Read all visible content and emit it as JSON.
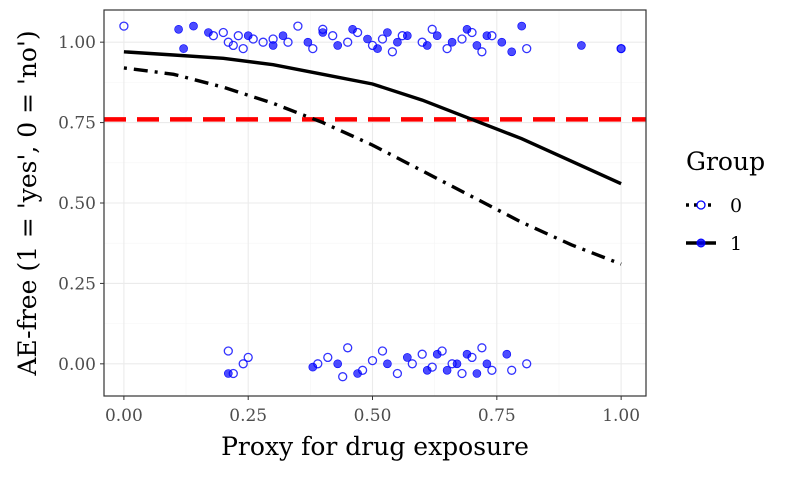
{
  "chart_data": {
    "type": "scatter",
    "title": "",
    "xlabel": "Proxy for drug exposure",
    "ylabel": "AE-free (1 = 'yes', 0 = 'no')",
    "xlim": [
      -0.04,
      1.05
    ],
    "ylim": [
      -0.1,
      1.1
    ],
    "x_ticks": [
      0.0,
      0.25,
      0.5,
      0.75,
      1.0
    ],
    "x_tick_labels": [
      "0.00",
      "0.25",
      "0.50",
      "0.75",
      "1.00"
    ],
    "y_ticks": [
      0.0,
      0.25,
      0.5,
      0.75,
      1.0
    ],
    "y_tick_labels": [
      "0.00",
      "0.25",
      "0.50",
      "0.75",
      "1.00"
    ],
    "grid": true,
    "reference_line": {
      "y": 0.76,
      "style": "dashed",
      "color": "#ff0000"
    },
    "legend": {
      "title": "Group",
      "placement": "right",
      "entries": [
        {
          "label": "0",
          "marker": "open-circle",
          "line": "dotdash"
        },
        {
          "label": "1",
          "marker": "filled-circle",
          "line": "solid"
        }
      ]
    },
    "point_color": "#0000ff",
    "series": [
      {
        "name": "0",
        "line_style": "dotdash",
        "curve": {
          "x": [
            0.0,
            0.1,
            0.2,
            0.3,
            0.4,
            0.5,
            0.6,
            0.7,
            0.8,
            0.9,
            1.0
          ],
          "y": [
            0.92,
            0.9,
            0.86,
            0.81,
            0.75,
            0.68,
            0.6,
            0.52,
            0.44,
            0.37,
            0.31
          ]
        },
        "points": [
          [
            0.0,
            1.05
          ],
          [
            0.18,
            1.02
          ],
          [
            0.2,
            1.03
          ],
          [
            0.21,
            1.0
          ],
          [
            0.22,
            0.99
          ],
          [
            0.23,
            1.02
          ],
          [
            0.24,
            0.98
          ],
          [
            0.26,
            1.01
          ],
          [
            0.28,
            1.0
          ],
          [
            0.3,
            1.01
          ],
          [
            0.33,
            1.0
          ],
          [
            0.35,
            1.05
          ],
          [
            0.38,
            0.98
          ],
          [
            0.4,
            1.04
          ],
          [
            0.42,
            1.02
          ],
          [
            0.45,
            1.0
          ],
          [
            0.47,
            1.03
          ],
          [
            0.5,
            0.99
          ],
          [
            0.52,
            1.01
          ],
          [
            0.54,
            0.97
          ],
          [
            0.56,
            1.02
          ],
          [
            0.6,
            1.0
          ],
          [
            0.62,
            1.04
          ],
          [
            0.65,
            0.98
          ],
          [
            0.68,
            1.01
          ],
          [
            0.7,
            1.03
          ],
          [
            0.72,
            0.97
          ],
          [
            0.74,
            1.02
          ],
          [
            0.81,
            0.98
          ],
          [
            1.0,
            0.98
          ],
          [
            0.21,
            0.04
          ],
          [
            0.22,
            -0.03
          ],
          [
            0.24,
            0.0
          ],
          [
            0.25,
            0.02
          ],
          [
            0.39,
            0.0
          ],
          [
            0.41,
            0.02
          ],
          [
            0.44,
            -0.04
          ],
          [
            0.45,
            0.05
          ],
          [
            0.48,
            -0.02
          ],
          [
            0.5,
            0.01
          ],
          [
            0.52,
            0.04
          ],
          [
            0.55,
            -0.03
          ],
          [
            0.58,
            0.0
          ],
          [
            0.6,
            0.03
          ],
          [
            0.62,
            -0.01
          ],
          [
            0.64,
            0.04
          ],
          [
            0.66,
            0.0
          ],
          [
            0.68,
            -0.03
          ],
          [
            0.7,
            0.02
          ],
          [
            0.72,
            0.05
          ],
          [
            0.74,
            -0.02
          ],
          [
            0.78,
            -0.02
          ],
          [
            0.81,
            0.0
          ]
        ]
      },
      {
        "name": "1",
        "line_style": "solid",
        "curve": {
          "x": [
            0.0,
            0.1,
            0.2,
            0.3,
            0.4,
            0.5,
            0.6,
            0.7,
            0.8,
            0.9,
            1.0
          ],
          "y": [
            0.97,
            0.96,
            0.95,
            0.93,
            0.9,
            0.87,
            0.82,
            0.76,
            0.7,
            0.63,
            0.56
          ]
        },
        "points": [
          [
            0.11,
            1.04
          ],
          [
            0.12,
            0.98
          ],
          [
            0.14,
            1.05
          ],
          [
            0.17,
            1.03
          ],
          [
            0.25,
            1.02
          ],
          [
            0.3,
            0.99
          ],
          [
            0.32,
            1.02
          ],
          [
            0.37,
            1.0
          ],
          [
            0.4,
            1.03
          ],
          [
            0.43,
            0.99
          ],
          [
            0.46,
            1.04
          ],
          [
            0.49,
            1.01
          ],
          [
            0.51,
            0.98
          ],
          [
            0.53,
            1.03
          ],
          [
            0.55,
            1.0
          ],
          [
            0.57,
            1.02
          ],
          [
            0.61,
            0.99
          ],
          [
            0.63,
            1.02
          ],
          [
            0.66,
            1.0
          ],
          [
            0.69,
            1.04
          ],
          [
            0.71,
            0.99
          ],
          [
            0.73,
            1.02
          ],
          [
            0.76,
            1.0
          ],
          [
            0.78,
            0.97
          ],
          [
            0.8,
            1.05
          ],
          [
            0.92,
            0.99
          ],
          [
            1.0,
            0.98
          ],
          [
            0.21,
            -0.03
          ],
          [
            0.38,
            -0.01
          ],
          [
            0.43,
            0.0
          ],
          [
            0.47,
            -0.03
          ],
          [
            0.53,
            0.0
          ],
          [
            0.57,
            0.02
          ],
          [
            0.61,
            -0.02
          ],
          [
            0.63,
            0.03
          ],
          [
            0.65,
            -0.02
          ],
          [
            0.67,
            0.0
          ],
          [
            0.69,
            0.03
          ],
          [
            0.71,
            -0.03
          ],
          [
            0.73,
            0.0
          ],
          [
            0.77,
            0.03
          ]
        ]
      }
    ]
  }
}
